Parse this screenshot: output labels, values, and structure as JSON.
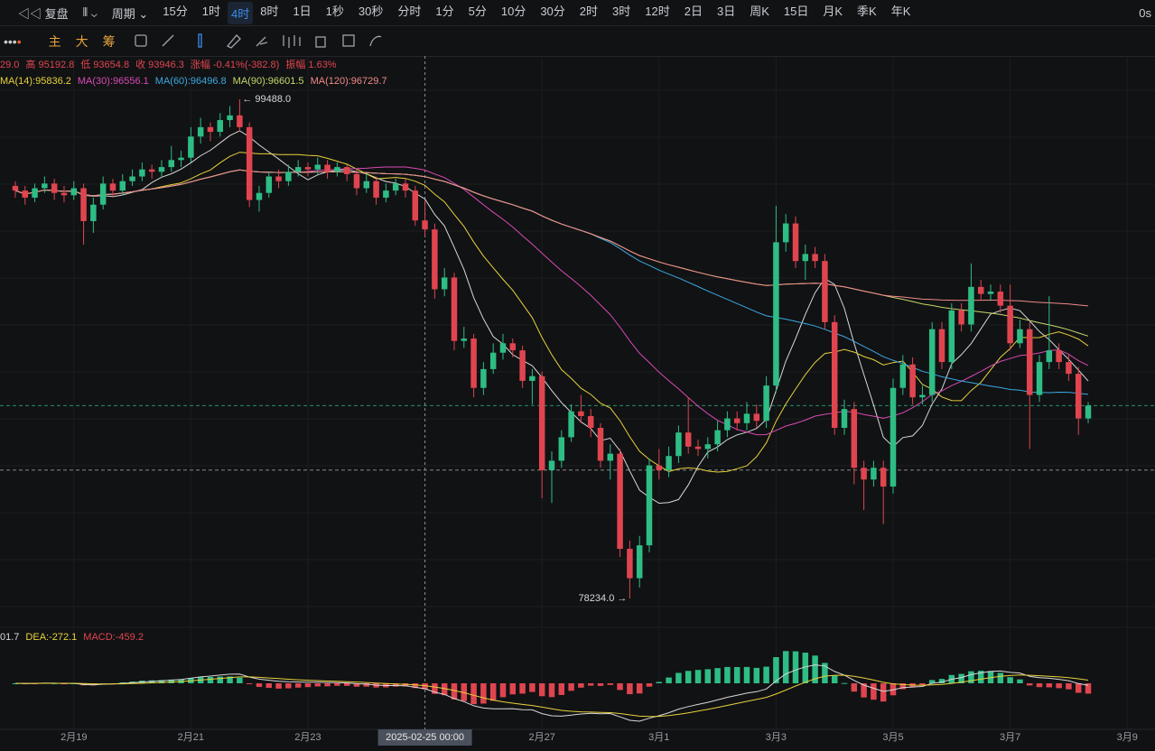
{
  "toolbar": {
    "replay": "复盘",
    "period": "周期",
    "timeframes": [
      "15分",
      "1时",
      "4时",
      "8时",
      "1日",
      "1秒",
      "30秒",
      "分时",
      "1分",
      "5分",
      "10分",
      "30分",
      "2时",
      "3时",
      "12时",
      "2日",
      "3日",
      "周K",
      "15日",
      "月K",
      "季K",
      "年K"
    ],
    "active": 2,
    "countdown": "0s",
    "indicators": [
      "主",
      "大",
      "筹"
    ]
  },
  "chart_data": {
    "type": "candlestick",
    "info": [
      "29.0",
      "高 95192.8",
      "低 93654.8",
      "收 93946.3",
      "涨幅 -0.41%(-382.8)",
      "振幅 1.63%"
    ],
    "ma": [
      {
        "period": 7,
        "color": "#d8d8d8"
      },
      {
        "period": 14,
        "label": "MA(14):95836.2",
        "color": "#e6d23c"
      },
      {
        "period": 30,
        "label": "MA(30):96556.1",
        "color": "#d94ab5"
      },
      {
        "period": 60,
        "label": "MA(60):96496.8",
        "color": "#3ba9e0"
      },
      {
        "period": 90,
        "label": "MA(90):96601.5",
        "color": "#c4d86a"
      },
      {
        "period": 120,
        "label": "MA(120):96729.7",
        "color": "#f08a8a"
      }
    ],
    "macd_labels": [
      {
        "label": "01.7",
        "color": "#d8d8d8"
      },
      {
        "label": "DEA:-272.1",
        "color": "#e6d23c"
      },
      {
        "label": "MACD:-459.2",
        "color": "#e0454f"
      }
    ],
    "annotations": {
      "high": "← 99488.0",
      "low": "78234.0 →"
    },
    "up_color": "#2ebd85",
    "down_color": "#e0454f",
    "xlim": [
      -1.57,
      116.85
    ],
    "ylim": [
      77200,
      101330
    ],
    "xticks": [
      {
        "value": 6,
        "label": "2月19"
      },
      {
        "value": 18,
        "label": "2月21"
      },
      {
        "value": 30,
        "label": "2月23"
      },
      {
        "value": 42,
        "label": "2025-02-25 00:00"
      },
      {
        "value": 54,
        "label": "2月27"
      },
      {
        "value": 66,
        "label": "3月1"
      },
      {
        "value": 78,
        "label": "3月3"
      },
      {
        "value": 90,
        "label": "3月5"
      },
      {
        "value": 102,
        "label": "3月7"
      },
      {
        "value": 114,
        "label": "3月9"
      }
    ],
    "crosshair_tick": 3,
    "price_lines": [
      {
        "value": 86450,
        "color": "#2ebd85"
      },
      {
        "value": 83700,
        "color": "#9a9a9a"
      }
    ],
    "candles": [
      [
        95800,
        96000,
        95300,
        95600
      ],
      [
        95600,
        95800,
        95000,
        95300
      ],
      [
        95300,
        95900,
        95100,
        95700
      ],
      [
        95700,
        96200,
        95500,
        95900
      ],
      [
        95900,
        96100,
        95200,
        95500
      ],
      [
        95500,
        95800,
        95100,
        95400
      ],
      [
        95400,
        96000,
        95200,
        95700
      ],
      [
        95700,
        95900,
        93300,
        94300
      ],
      [
        94300,
        95300,
        93800,
        95000
      ],
      [
        95000,
        96200,
        94800,
        95900
      ],
      [
        95900,
        96100,
        95300,
        95600
      ],
      [
        95600,
        96300,
        95400,
        96000
      ],
      [
        96000,
        96500,
        95800,
        96200
      ],
      [
        96200,
        96800,
        96000,
        96500
      ],
      [
        96500,
        96700,
        96100,
        96400
      ],
      [
        96400,
        96900,
        96200,
        96600
      ],
      [
        96600,
        97500,
        96400,
        96900
      ],
      [
        96900,
        97300,
        96600,
        97000
      ],
      [
        97000,
        98300,
        96800,
        97900
      ],
      [
        97900,
        98700,
        97600,
        98300
      ],
      [
        98300,
        98500,
        97700,
        98100
      ],
      [
        98100,
        98900,
        97900,
        98600
      ],
      [
        98600,
        99200,
        98300,
        98800
      ],
      [
        98800,
        99488,
        98100,
        98300
      ],
      [
        98300,
        98500,
        94900,
        95200
      ],
      [
        95200,
        95800,
        94700,
        95500
      ],
      [
        95500,
        96400,
        95300,
        96200
      ],
      [
        96200,
        96500,
        95700,
        96000
      ],
      [
        96000,
        96700,
        95800,
        96400
      ],
      [
        96400,
        96900,
        96200,
        96600
      ],
      [
        96600,
        96800,
        96200,
        96500
      ],
      [
        96500,
        97000,
        96300,
        96700
      ],
      [
        96700,
        96900,
        96100,
        96400
      ],
      [
        96400,
        96800,
        96200,
        96600
      ],
      [
        96600,
        96700,
        96000,
        96300
      ],
      [
        96300,
        96500,
        95400,
        95700
      ],
      [
        95700,
        96300,
        95500,
        96000
      ],
      [
        96000,
        96200,
        95000,
        95300
      ],
      [
        95300,
        95900,
        95100,
        95600
      ],
      [
        95600,
        96100,
        95400,
        95900
      ],
      [
        95900,
        96100,
        95300,
        95600
      ],
      [
        95600,
        95800,
        94100,
        94329
      ],
      [
        94329,
        95192.8,
        93654.8,
        93946.3
      ],
      [
        93946,
        94200,
        91000,
        91400
      ],
      [
        91400,
        92300,
        91100,
        91900
      ],
      [
        91900,
        92100,
        88800,
        89200
      ],
      [
        89200,
        89800,
        88900,
        89300
      ],
      [
        89300,
        89500,
        86800,
        87200
      ],
      [
        87200,
        88300,
        86900,
        88000
      ],
      [
        88000,
        89100,
        87800,
        88700
      ],
      [
        88700,
        89500,
        88400,
        89100
      ],
      [
        89100,
        89300,
        88500,
        88800
      ],
      [
        88800,
        89000,
        87200,
        87500
      ],
      [
        87500,
        88000,
        86500,
        87700
      ],
      [
        87700,
        87900,
        82500,
        83700
      ],
      [
        83700,
        84500,
        82300,
        84100
      ],
      [
        84100,
        85400,
        83800,
        85100
      ],
      [
        85100,
        86500,
        84900,
        86200
      ],
      [
        86200,
        86900,
        85700,
        86000
      ],
      [
        86000,
        86300,
        85100,
        85500
      ],
      [
        85500,
        85700,
        83800,
        84100
      ],
      [
        84100,
        84800,
        83300,
        84400
      ],
      [
        84400,
        84600,
        80000,
        80350
      ],
      [
        80350,
        80700,
        78234,
        79100
      ],
      [
        79100,
        80900,
        78700,
        80500
      ],
      [
        80500,
        84200,
        80200,
        83900
      ],
      [
        83900,
        84600,
        83300,
        83700
      ],
      [
        83700,
        84700,
        83400,
        84300
      ],
      [
        84300,
        85600,
        84000,
        85300
      ],
      [
        85300,
        86800,
        84400,
        84700
      ],
      [
        84700,
        85000,
        84300,
        84600
      ],
      [
        84600,
        85100,
        84200,
        84800
      ],
      [
        84800,
        85800,
        84500,
        85400
      ],
      [
        85400,
        86200,
        85100,
        85900
      ],
      [
        85900,
        86200,
        85400,
        85700
      ],
      [
        85700,
        86600,
        85400,
        86100
      ],
      [
        86100,
        86500,
        85500,
        85800
      ],
      [
        85800,
        87700,
        85500,
        87300
      ],
      [
        87300,
        94950,
        87000,
        93400
      ],
      [
        93400,
        94600,
        93000,
        94200
      ],
      [
        94200,
        94500,
        92300,
        92600
      ],
      [
        92600,
        93300,
        91800,
        92900
      ],
      [
        92900,
        93200,
        92300,
        92600
      ],
      [
        92600,
        92900,
        89700,
        90000
      ],
      [
        90000,
        90300,
        85200,
        85500
      ],
      [
        85500,
        86700,
        85200,
        86300
      ],
      [
        86300,
        86600,
        83100,
        83800
      ],
      [
        83800,
        84100,
        82000,
        83300
      ],
      [
        83300,
        84100,
        83000,
        83800
      ],
      [
        83800,
        84100,
        81400,
        83000
      ],
      [
        83000,
        87600,
        82700,
        87200
      ],
      [
        87200,
        88600,
        86900,
        88200
      ],
      [
        88200,
        88500,
        86500,
        86800
      ],
      [
        86800,
        87300,
        86500,
        86900
      ],
      [
        86900,
        90000,
        86600,
        89700
      ],
      [
        89700,
        90000,
        88000,
        88300
      ],
      [
        88300,
        90800,
        88000,
        90500
      ],
      [
        90500,
        90800,
        89600,
        89900
      ],
      [
        89900,
        92500,
        89600,
        91500
      ],
      [
        91500,
        91800,
        90900,
        91200
      ],
      [
        91200,
        91600,
        90900,
        91300
      ],
      [
        91300,
        91600,
        90400,
        90700
      ],
      [
        90700,
        91600,
        88800,
        89100
      ],
      [
        89100,
        90100,
        88900,
        89700
      ],
      [
        89700,
        90000,
        84600,
        86900
      ],
      [
        86900,
        88600,
        86600,
        88300
      ],
      [
        88300,
        91100,
        88000,
        88800
      ],
      [
        88800,
        89100,
        88000,
        88300
      ],
      [
        88300,
        88600,
        87500,
        87800
      ],
      [
        87800,
        88100,
        85200,
        85900
      ],
      [
        85900,
        86600,
        85700,
        86450
      ]
    ]
  }
}
